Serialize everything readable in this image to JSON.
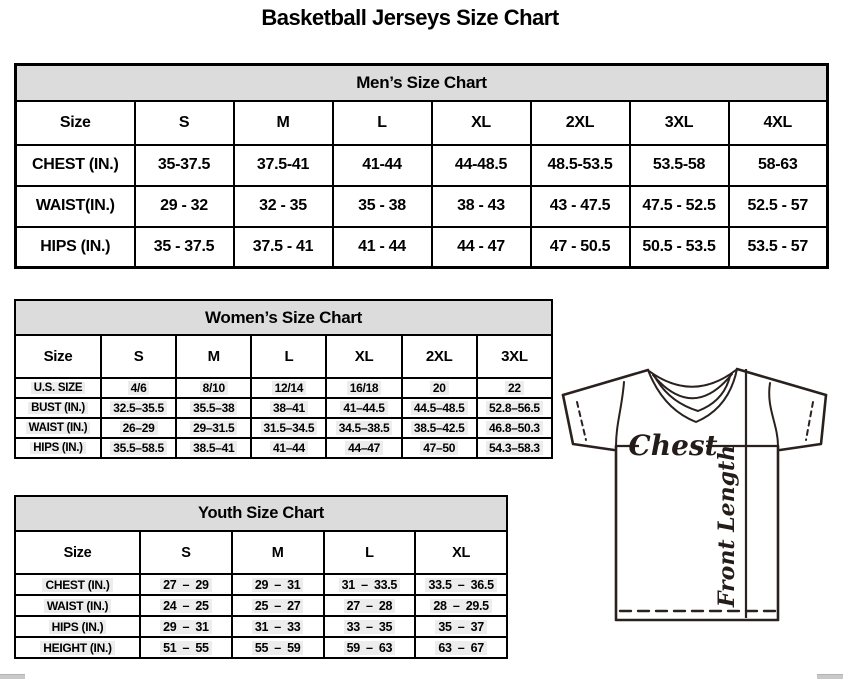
{
  "page_title": "Basketball Jerseys Size Chart",
  "colors": {
    "band_background": "#dcdcdc",
    "table_border": "#000000",
    "diagram_line": "#2a211e",
    "highlight": "#ededed",
    "scrollbar": "#c9c9c9"
  },
  "mens": {
    "title": "Men’s Size Chart",
    "columns": [
      "Size",
      "S",
      "M",
      "L",
      "XL",
      "2XL",
      "3XL",
      "4XL"
    ],
    "rows": [
      {
        "label": "CHEST (IN.)",
        "values": [
          "35-37.5",
          "37.5-41",
          "41-44",
          "44-48.5",
          "48.5-53.5",
          "53.5-58",
          "58-63"
        ]
      },
      {
        "label": "WAIST(IN.)",
        "values": [
          "29 - 32",
          "32 - 35",
          "35 - 38",
          "38 - 43",
          "43 - 47.5",
          "47.5 - 52.5",
          "52.5 - 57"
        ]
      },
      {
        "label": "HIPS (IN.)",
        "values": [
          "35 - 37.5",
          "37.5 - 41",
          "41 - 44",
          "44 - 47",
          "47 - 50.5",
          "50.5 - 53.5",
          "53.5 - 57"
        ]
      }
    ]
  },
  "womens": {
    "title": "Women’s Size Chart",
    "columns": [
      "Size",
      "S",
      "M",
      "L",
      "XL",
      "2XL",
      "3XL"
    ],
    "rows": [
      {
        "label": "U.S. SIZE",
        "values": [
          "4/6",
          "8/10",
          "12/14",
          "16/18",
          "20",
          "22"
        ]
      },
      {
        "label": "BUST (IN.)",
        "values": [
          "32.5–35.5",
          "35.5–38",
          "38–41",
          "41–44.5",
          "44.5–48.5",
          "52.8–56.5"
        ]
      },
      {
        "label": "WAIST (IN.)",
        "values": [
          "26–29",
          "29–31.5",
          "31.5–34.5",
          "34.5–38.5",
          "38.5–42.5",
          "46.8–50.3"
        ]
      },
      {
        "label": "HIPS (IN.)",
        "values": [
          "35.5–58.5",
          "38.5–41",
          "41–44",
          "44–47",
          "47–50",
          "54.3–58.3"
        ]
      }
    ]
  },
  "youth": {
    "title": "Youth Size Chart",
    "columns": [
      "Size",
      "S",
      "M",
      "L",
      "XL"
    ],
    "rows": [
      {
        "label": "CHEST (IN.)",
        "values": [
          "27 – 29",
          "29 – 31",
          "31 – 33.5",
          "33.5 – 36.5"
        ]
      },
      {
        "label": "WAIST (IN.)",
        "values": [
          "24 – 25",
          "25 – 27",
          "27 – 28",
          "28 – 29.5"
        ]
      },
      {
        "label": "HIPS (IN.)",
        "values": [
          "29 – 31",
          "31 – 33",
          "33 – 35",
          "35 – 37"
        ]
      },
      {
        "label": "HEIGHT (IN.)",
        "values": [
          "51 – 55",
          "55 – 59",
          "59 – 63",
          "63 – 67"
        ]
      }
    ]
  },
  "diagram": {
    "chest_label": "Chest",
    "front_length_label": "Front Length"
  }
}
